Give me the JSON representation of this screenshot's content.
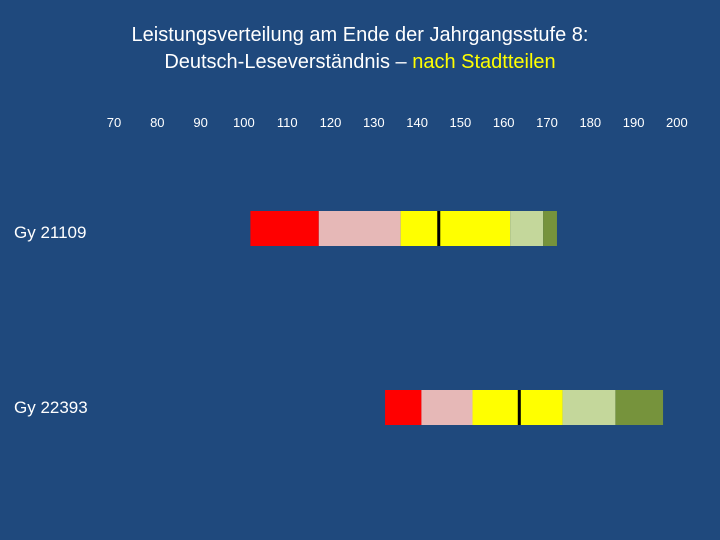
{
  "title": {
    "line1": "Leistungsverteilung am Ende der Jahrgangsstufe 8:",
    "line2_prefix": "Deutsch-Leseverständnis – ",
    "line2_highlight": "nach Stadtteilen"
  },
  "chart_data": {
    "type": "bar",
    "orientation": "horizontal",
    "title": "Leistungsverteilung am Ende der Jahrgangsstufe 8: Deutsch-Leseverständnis – nach Stadtteilen",
    "x_ticks": [
      70,
      80,
      90,
      100,
      110,
      120,
      130,
      140,
      150,
      160,
      170,
      180,
      190,
      200
    ],
    "xlim": [
      70,
      200
    ],
    "categories": [
      "Gy 21109",
      "Gy 22393"
    ],
    "series": [
      {
        "name": "Gy 21109",
        "segments": [
          {
            "from": 101.5,
            "to": 117.3,
            "color": "#ff0000"
          },
          {
            "from": 117.3,
            "to": 136.2,
            "color": "#e6b8b7"
          },
          {
            "from": 136.2,
            "to": 145.3,
            "color": "#ffff00"
          },
          {
            "from": 145.3,
            "to": 161.5,
            "color": "#ffff00"
          },
          {
            "from": 161.5,
            "to": 169.1,
            "color": "#c4d79b"
          },
          {
            "from": 169.1,
            "to": 172.3,
            "color": "#76933c"
          }
        ],
        "median": 145.0
      },
      {
        "name": "Gy 22393",
        "segments": [
          {
            "from": 132.6,
            "to": 141.0,
            "color": "#ff0000"
          },
          {
            "from": 141.0,
            "to": 152.8,
            "color": "#e6b8b7"
          },
          {
            "from": 152.8,
            "to": 163.9,
            "color": "#ffff00"
          },
          {
            "from": 163.9,
            "to": 173.6,
            "color": "#ffff00"
          },
          {
            "from": 173.6,
            "to": 185.8,
            "color": "#c4d79b"
          },
          {
            "from": 185.8,
            "to": 196.8,
            "color": "#76933c"
          }
        ],
        "median": 163.6
      }
    ]
  }
}
